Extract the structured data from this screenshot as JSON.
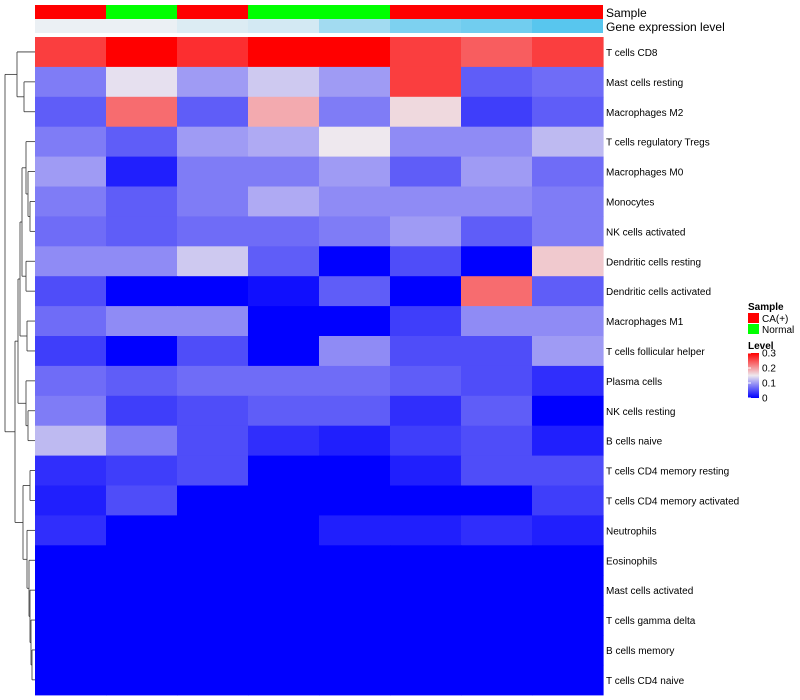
{
  "chart_data": {
    "type": "heatmap",
    "annotation_titles": [
      "Sample",
      "Gene expression level"
    ],
    "sample_annotation": [
      "CA(+)",
      "Normal",
      "CA(+)",
      "Normal",
      "Normal",
      "CA(+)",
      "CA(+)",
      "CA(+)"
    ],
    "gene_expression_annotation": [
      0,
      0,
      0.06,
      0.1,
      0.3,
      0.45,
      0.5,
      0.6
    ],
    "rows": [
      "T cells CD8",
      "Mast cells resting",
      "Macrophages M2",
      "T cells regulatory  Tregs",
      "Macrophages M0",
      "Monocytes",
      "NK cells activated",
      "Dendritic cells resting",
      "Dendritic cells activated",
      "Macrophages M1",
      "T cells follicular helper",
      "Plasma cells",
      "NK cells resting",
      "B cells naive",
      "T cells CD4 memory resting",
      "T cells CD4 memory activated",
      "Neutrophils",
      "Eosinophils",
      "Mast cells activated",
      "T cells gamma delta",
      "B cells memory",
      "T cells CD4 naive"
    ],
    "values": [
      [
        0.26,
        0.3,
        0.27,
        0.3,
        0.3,
        0.26,
        0.24,
        0.26
      ],
      [
        0.08,
        0.145,
        0.1,
        0.13,
        0.1,
        0.26,
        0.06,
        0.07
      ],
      [
        0.06,
        0.23,
        0.06,
        0.19,
        0.08,
        0.16,
        0.04,
        0.06
      ],
      [
        0.08,
        0.06,
        0.1,
        0.11,
        0.15,
        0.09,
        0.09,
        0.12
      ],
      [
        0.1,
        0.02,
        0.08,
        0.08,
        0.1,
        0.06,
        0.1,
        0.07
      ],
      [
        0.08,
        0.06,
        0.08,
        0.11,
        0.09,
        0.09,
        0.09,
        0.08
      ],
      [
        0.07,
        0.06,
        0.07,
        0.07,
        0.08,
        0.1,
        0.06,
        0.08
      ],
      [
        0.09,
        0.09,
        0.13,
        0.06,
        0.0,
        0.05,
        0.0,
        0.17
      ],
      [
        0.05,
        0.0,
        0.0,
        0.01,
        0.06,
        0.0,
        0.23,
        0.06
      ],
      [
        0.07,
        0.09,
        0.09,
        0.0,
        0.0,
        0.04,
        0.09,
        0.09
      ],
      [
        0.04,
        0.0,
        0.05,
        0.0,
        0.09,
        0.05,
        0.05,
        0.1
      ],
      [
        0.07,
        0.06,
        0.07,
        0.07,
        0.07,
        0.06,
        0.05,
        0.03
      ],
      [
        0.08,
        0.04,
        0.05,
        0.06,
        0.06,
        0.03,
        0.06,
        0.0
      ],
      [
        0.12,
        0.08,
        0.05,
        0.03,
        0.02,
        0.04,
        0.05,
        0.02
      ],
      [
        0.03,
        0.04,
        0.05,
        0.0,
        0.0,
        0.02,
        0.05,
        0.05
      ],
      [
        0.02,
        0.05,
        0.0,
        0.0,
        0.0,
        0.0,
        0.0,
        0.04
      ],
      [
        0.03,
        0.0,
        0.0,
        0.0,
        0.02,
        0.02,
        0.03,
        0.02
      ],
      [
        0.0,
        0.0,
        0.0,
        0.0,
        0.0,
        0.0,
        0.0,
        0.0
      ],
      [
        0.0,
        0.0,
        0.0,
        0.0,
        0.0,
        0.0,
        0.0,
        0.0
      ],
      [
        0.0,
        0.0,
        0.0,
        0.0,
        0.0,
        0.0,
        0.0,
        0.0
      ],
      [
        0.0,
        0.0,
        0.0,
        0.0,
        0.0,
        0.0,
        0.0,
        0.0
      ],
      [
        0.0,
        0.0,
        0.0,
        0.0,
        0.0,
        0.0,
        0.0,
        0.0
      ]
    ],
    "color_scale": {
      "low": "#0000FF",
      "mid": "#EEE8EE",
      "high": "#FF0000",
      "range": [
        0,
        0.3
      ],
      "mid_value": 0.15
    },
    "legend": {
      "sample_title": "Sample",
      "sample_entries": [
        {
          "label": "CA(+)",
          "color": "#FF0000"
        },
        {
          "label": "Normal",
          "color": "#00FF00"
        }
      ],
      "level_title": "Level",
      "level_ticks": [
        "0.3",
        "0.2",
        "0.1",
        "0"
      ],
      "level_tick_values": [
        0.3,
        0.2,
        0.1,
        0
      ]
    },
    "dendrogram": "rows clustered (hierarchical), shown on left"
  }
}
